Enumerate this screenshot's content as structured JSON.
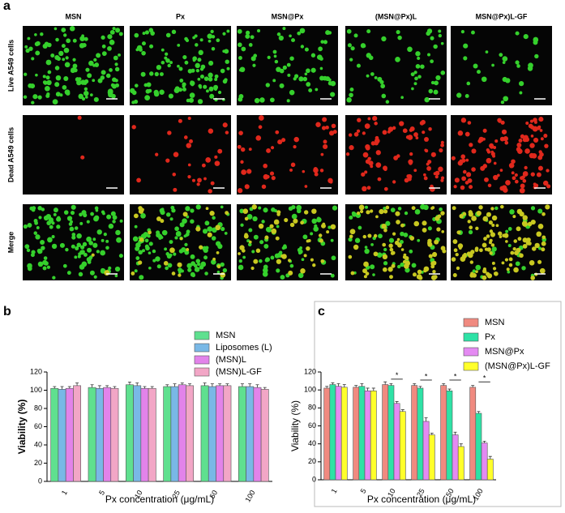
{
  "panel_a": {
    "letter": "a",
    "columns": [
      "MSN",
      "Px",
      "MSN@Px",
      "(MSN@Px)L",
      "MSN@Px)L-GF"
    ],
    "rows": [
      "Live A549 cells",
      "Dead A549 cells",
      "Merge"
    ]
  },
  "chart_data": [
    {
      "type": "bar",
      "letter": "b",
      "y_label": "Viability (%)",
      "x_label": "Px concentration (μg/mL)",
      "categories": [
        "1",
        "5",
        "10",
        "25",
        "50",
        "100"
      ],
      "ylim": [
        0,
        120
      ],
      "yticks": [
        0,
        20,
        40,
        60,
        80,
        100,
        120
      ],
      "series": [
        {
          "name": "MSN",
          "color": "#5fe08f",
          "values": [
            102,
            103,
            106,
            104,
            105,
            104
          ],
          "errors": [
            2,
            3,
            3,
            2,
            3,
            3
          ]
        },
        {
          "name": "Liposomes (L)",
          "color": "#79b8e6",
          "values": [
            101,
            102,
            105,
            104,
            104,
            104
          ],
          "errors": [
            3,
            3,
            3,
            3,
            3,
            3
          ]
        },
        {
          "name": "(MSN)L",
          "color": "#e283ea",
          "values": [
            102,
            103,
            102,
            106,
            105,
            103
          ],
          "errors": [
            2,
            2,
            2,
            2,
            2,
            3
          ]
        },
        {
          "name": "(MSN)L-GF",
          "color": "#f2a6c6",
          "values": [
            105,
            102,
            102,
            105,
            105,
            101
          ],
          "errors": [
            3,
            2,
            2,
            2,
            2,
            2
          ]
        }
      ]
    },
    {
      "type": "bar",
      "letter": "c",
      "y_label": "Viability (%)",
      "x_label": "Px concentration (μg/mL)",
      "categories": [
        "1",
        "5",
        "10",
        "25",
        "50",
        "100"
      ],
      "ylim": [
        0,
        120
      ],
      "yticks": [
        0,
        20,
        40,
        60,
        80,
        100,
        120
      ],
      "series": [
        {
          "name": "MSN",
          "color": "#f08a80",
          "values": [
            102,
            103,
            106,
            105,
            105,
            103
          ],
          "errors": [
            2,
            2,
            3,
            2,
            2,
            2
          ]
        },
        {
          "name": "Px",
          "color": "#2ee2a6",
          "values": [
            106,
            104,
            105,
            102,
            99,
            74
          ],
          "errors": [
            2,
            3,
            2,
            2,
            2,
            2
          ]
        },
        {
          "name": "MSN@Px",
          "color": "#e48af2",
          "values": [
            104,
            99,
            85,
            65,
            50,
            41
          ],
          "errors": [
            3,
            3,
            2,
            4,
            3,
            2
          ]
        },
        {
          "name": "(MSN@Px)L-GF",
          "color": "#ffff2a",
          "values": [
            103,
            99,
            76,
            50,
            37,
            23
          ],
          "errors": [
            3,
            3,
            2,
            2,
            3,
            3
          ]
        }
      ],
      "significance": [
        "*",
        "*",
        "*",
        "*"
      ]
    }
  ]
}
